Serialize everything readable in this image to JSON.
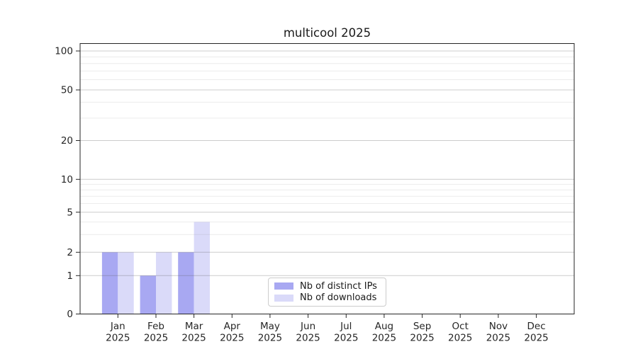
{
  "chart_data": {
    "type": "bar",
    "title": "multicool 2025",
    "year_label": "2025",
    "categories": [
      "Jan",
      "Feb",
      "Mar",
      "Apr",
      "May",
      "Jun",
      "Jul",
      "Aug",
      "Sep",
      "Oct",
      "Nov",
      "Dec"
    ],
    "series": [
      {
        "name": "Nb of distinct IPs",
        "color": "#a8a8f2",
        "values": [
          2,
          1,
          2,
          0,
          0,
          0,
          0,
          0,
          0,
          0,
          0,
          0
        ]
      },
      {
        "name": "Nb of downloads",
        "color": "#dadaf9",
        "values": [
          2,
          2,
          4,
          0,
          0,
          0,
          0,
          0,
          0,
          0,
          0,
          0
        ]
      }
    ],
    "y_axis": {
      "scale": "log-like",
      "major_ticks": [
        0,
        1,
        2,
        5,
        10,
        20,
        50,
        100
      ],
      "minor_gridlines": [
        3,
        4,
        6,
        7,
        8,
        9,
        30,
        40,
        60,
        70,
        80,
        90
      ],
      "ylim": [
        0,
        115
      ]
    },
    "legend": {
      "position": "lower center"
    },
    "grid": true,
    "colors": {
      "spine": "#262626",
      "tick_label": "#262626",
      "major_grid": "rgba(100,100,100,0.33)",
      "minor_grid": "rgba(150,150,150,0.18)"
    }
  }
}
